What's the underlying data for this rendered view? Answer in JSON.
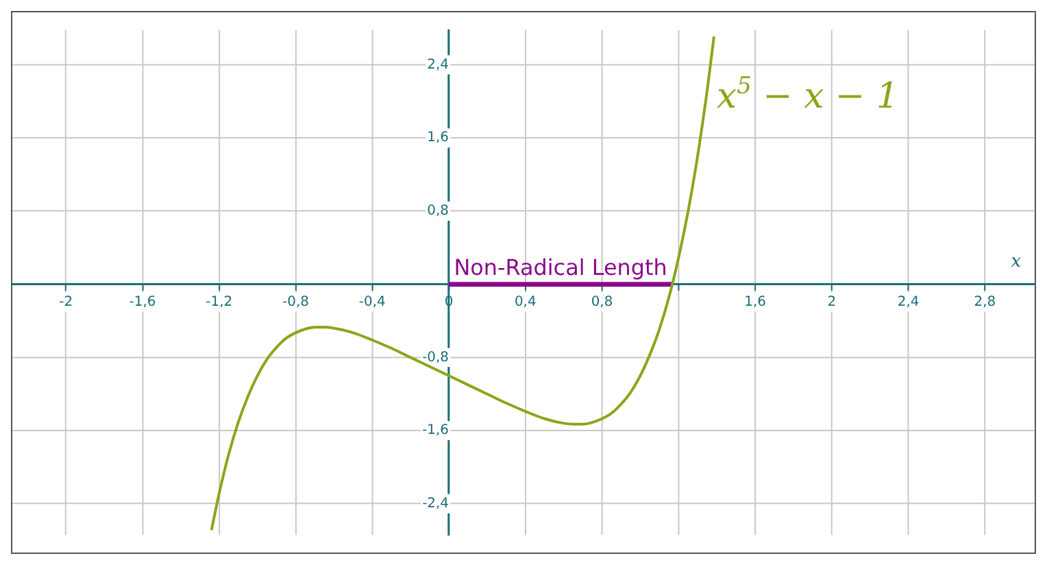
{
  "chart_data": {
    "type": "line",
    "xlabel": "x",
    "xlim": [
      -2.28,
      3.06
    ],
    "ylim": [
      -2.74,
      2.78
    ],
    "xticks": [
      {
        "value": -2,
        "label": "-2"
      },
      {
        "value": -1.6,
        "label": "-1,6"
      },
      {
        "value": -1.2,
        "label": "-1,2"
      },
      {
        "value": -0.8,
        "label": "-0,8"
      },
      {
        "value": -0.4,
        "label": "-0,4"
      },
      {
        "value": 0,
        "label": "0"
      },
      {
        "value": 0.4,
        "label": "0,4"
      },
      {
        "value": 0.8,
        "label": "0,8"
      },
      {
        "value": 1.2,
        "label": null
      },
      {
        "value": 1.6,
        "label": "1,6"
      },
      {
        "value": 2,
        "label": "2"
      },
      {
        "value": 2.4,
        "label": "2,4"
      },
      {
        "value": 2.8,
        "label": "2,8"
      }
    ],
    "yticks": [
      {
        "value": -2.4,
        "label": "-2,4"
      },
      {
        "value": -1.6,
        "label": "-1,6"
      },
      {
        "value": -0.8,
        "label": "-0,8"
      },
      {
        "value": 0,
        "label": null
      },
      {
        "value": 0.8,
        "label": "0,8"
      },
      {
        "value": 1.6,
        "label": "1,6"
      },
      {
        "value": 2.4,
        "label": "2,4"
      }
    ],
    "grid": true,
    "marker": "none",
    "line_style": "solid",
    "series": [
      {
        "name": "x$^{5}$ − x − 1",
        "color": "#8aa61a",
        "x": [
          -1.24,
          -1.2,
          -1.15,
          -1.1,
          -1.05,
          -1.0,
          -0.95,
          -0.9,
          -0.85,
          -0.8,
          -0.75,
          -0.7,
          -0.65,
          -0.6,
          -0.5,
          -0.4,
          -0.3,
          -0.2,
          -0.1,
          0,
          0.1,
          0.2,
          0.3,
          0.4,
          0.5,
          0.6,
          0.65,
          0.7,
          0.75,
          0.8,
          0.85,
          0.9,
          0.95,
          1.0,
          1.05,
          1.1,
          1.15,
          1.2,
          1.25,
          1.3,
          1.35,
          1.385
        ],
        "values": [
          -2.69,
          -2.29,
          -1.86,
          -1.51,
          -1.23,
          -1.0,
          -0.82,
          -0.69,
          -0.59,
          -0.53,
          -0.49,
          -0.47,
          -0.47,
          -0.48,
          -0.53,
          -0.61,
          -0.7,
          -0.8,
          -0.9,
          -1.0,
          -1.1,
          -1.2,
          -1.3,
          -1.39,
          -1.47,
          -1.52,
          -1.53,
          -1.53,
          -1.51,
          -1.47,
          -1.41,
          -1.31,
          -1.18,
          -1.0,
          -0.77,
          -0.49,
          -0.14,
          0.29,
          0.8,
          1.41,
          2.13,
          2.71
        ]
      },
      {
        "name": "Non-Radical Length",
        "color": "#8b0a8b",
        "x": [
          0,
          1.167
        ],
        "values": [
          0,
          0
        ]
      }
    ]
  }
}
